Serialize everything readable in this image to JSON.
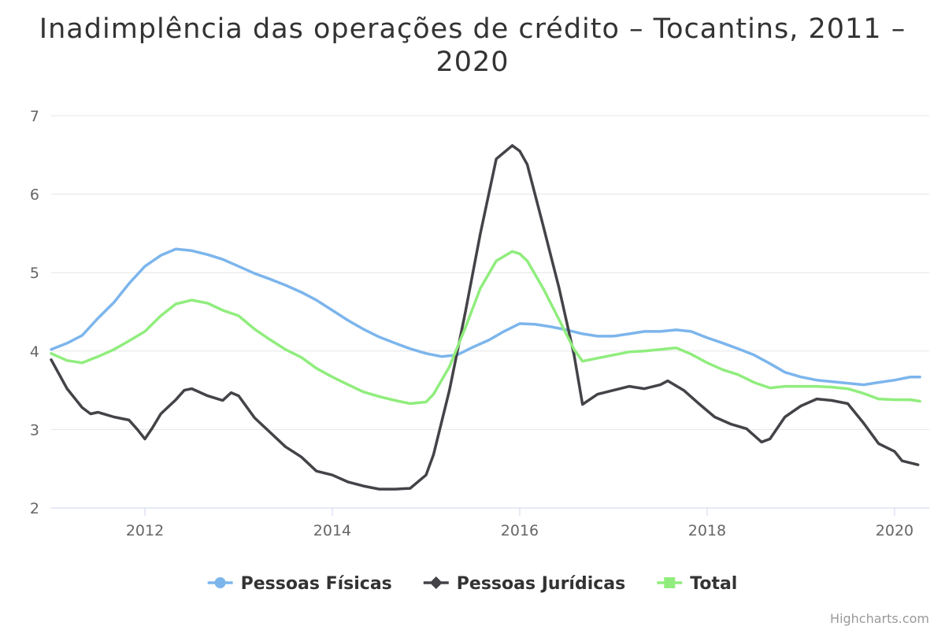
{
  "chart_data": {
    "type": "line",
    "title_line1": "Inadimplência das operações de crédito – Tocantins, 2011 –",
    "title_line2": "2020",
    "xlabel": "",
    "ylabel": "",
    "x_ticks": [
      "2012",
      "2014",
      "2016",
      "2018",
      "2020"
    ],
    "y_ticks": [
      "2",
      "3",
      "4",
      "5",
      "6",
      "7"
    ],
    "xlim": [
      2011.0,
      2020.37
    ],
    "ylim": [
      2,
      7
    ],
    "grid": true,
    "legend_position": "bottom-center",
    "series": [
      {
        "name": "Pessoas Físicas",
        "color": "#7cb5ec",
        "marker": "circle",
        "points": [
          [
            2011.0,
            4.02
          ],
          [
            2011.17,
            4.1
          ],
          [
            2011.33,
            4.2
          ],
          [
            2011.5,
            4.42
          ],
          [
            2011.67,
            4.62
          ],
          [
            2011.83,
            4.86
          ],
          [
            2012.0,
            5.08
          ],
          [
            2012.17,
            5.22
          ],
          [
            2012.33,
            5.3
          ],
          [
            2012.5,
            5.28
          ],
          [
            2012.67,
            5.23
          ],
          [
            2012.83,
            5.17
          ],
          [
            2013.0,
            5.08
          ],
          [
            2013.17,
            4.99
          ],
          [
            2013.33,
            4.92
          ],
          [
            2013.5,
            4.84
          ],
          [
            2013.67,
            4.75
          ],
          [
            2013.83,
            4.65
          ],
          [
            2014.0,
            4.52
          ],
          [
            2014.17,
            4.39
          ],
          [
            2014.33,
            4.28
          ],
          [
            2014.5,
            4.18
          ],
          [
            2014.67,
            4.1
          ],
          [
            2014.83,
            4.03
          ],
          [
            2015.0,
            3.97
          ],
          [
            2015.17,
            3.93
          ],
          [
            2015.33,
            3.95
          ],
          [
            2015.5,
            4.05
          ],
          [
            2015.67,
            4.14
          ],
          [
            2015.83,
            4.25
          ],
          [
            2016.0,
            4.35
          ],
          [
            2016.17,
            4.34
          ],
          [
            2016.33,
            4.31
          ],
          [
            2016.5,
            4.27
          ],
          [
            2016.67,
            4.22
          ],
          [
            2016.83,
            4.19
          ],
          [
            2017.0,
            4.19
          ],
          [
            2017.17,
            4.22
          ],
          [
            2017.33,
            4.25
          ],
          [
            2017.5,
            4.25
          ],
          [
            2017.67,
            4.27
          ],
          [
            2017.83,
            4.25
          ],
          [
            2018.0,
            4.17
          ],
          [
            2018.17,
            4.1
          ],
          [
            2018.33,
            4.03
          ],
          [
            2018.5,
            3.95
          ],
          [
            2018.67,
            3.84
          ],
          [
            2018.83,
            3.73
          ],
          [
            2019.0,
            3.67
          ],
          [
            2019.17,
            3.63
          ],
          [
            2019.33,
            3.61
          ],
          [
            2019.5,
            3.59
          ],
          [
            2019.67,
            3.57
          ],
          [
            2019.83,
            3.6
          ],
          [
            2020.0,
            3.63
          ],
          [
            2020.17,
            3.67
          ],
          [
            2020.27,
            3.67
          ]
        ]
      },
      {
        "name": "Pessoas Jurídicas",
        "color": "#434348",
        "marker": "diamond",
        "points": [
          [
            2011.0,
            3.89
          ],
          [
            2011.17,
            3.52
          ],
          [
            2011.33,
            3.28
          ],
          [
            2011.42,
            3.2
          ],
          [
            2011.5,
            3.22
          ],
          [
            2011.67,
            3.16
          ],
          [
            2011.83,
            3.12
          ],
          [
            2011.92,
            3.0
          ],
          [
            2012.0,
            2.88
          ],
          [
            2012.08,
            3.02
          ],
          [
            2012.17,
            3.2
          ],
          [
            2012.33,
            3.38
          ],
          [
            2012.42,
            3.5
          ],
          [
            2012.5,
            3.52
          ],
          [
            2012.67,
            3.43
          ],
          [
            2012.83,
            3.37
          ],
          [
            2012.92,
            3.47
          ],
          [
            2013.0,
            3.43
          ],
          [
            2013.17,
            3.15
          ],
          [
            2013.33,
            2.97
          ],
          [
            2013.5,
            2.78
          ],
          [
            2013.67,
            2.65
          ],
          [
            2013.83,
            2.47
          ],
          [
            2014.0,
            2.42
          ],
          [
            2014.17,
            2.33
          ],
          [
            2014.33,
            2.28
          ],
          [
            2014.5,
            2.24
          ],
          [
            2014.67,
            2.24
          ],
          [
            2014.83,
            2.25
          ],
          [
            2015.0,
            2.42
          ],
          [
            2015.08,
            2.68
          ],
          [
            2015.25,
            3.5
          ],
          [
            2015.42,
            4.5
          ],
          [
            2015.58,
            5.5
          ],
          [
            2015.75,
            6.45
          ],
          [
            2015.92,
            6.62
          ],
          [
            2016.0,
            6.55
          ],
          [
            2016.08,
            6.38
          ],
          [
            2016.25,
            5.6
          ],
          [
            2016.42,
            4.8
          ],
          [
            2016.58,
            3.95
          ],
          [
            2016.67,
            3.32
          ],
          [
            2016.83,
            3.45
          ],
          [
            2017.0,
            3.5
          ],
          [
            2017.17,
            3.55
          ],
          [
            2017.33,
            3.52
          ],
          [
            2017.5,
            3.57
          ],
          [
            2017.58,
            3.62
          ],
          [
            2017.75,
            3.5
          ],
          [
            2017.92,
            3.32
          ],
          [
            2018.08,
            3.16
          ],
          [
            2018.25,
            3.07
          ],
          [
            2018.42,
            3.01
          ],
          [
            2018.58,
            2.84
          ],
          [
            2018.67,
            2.88
          ],
          [
            2018.83,
            3.16
          ],
          [
            2019.0,
            3.3
          ],
          [
            2019.17,
            3.39
          ],
          [
            2019.33,
            3.37
          ],
          [
            2019.5,
            3.33
          ],
          [
            2019.67,
            3.08
          ],
          [
            2019.83,
            2.82
          ],
          [
            2020.0,
            2.72
          ],
          [
            2020.08,
            2.6
          ],
          [
            2020.25,
            2.55
          ]
        ]
      },
      {
        "name": "Total",
        "color": "#90ed7d",
        "marker": "square",
        "points": [
          [
            2011.0,
            3.97
          ],
          [
            2011.17,
            3.88
          ],
          [
            2011.33,
            3.85
          ],
          [
            2011.5,
            3.93
          ],
          [
            2011.67,
            4.02
          ],
          [
            2011.83,
            4.13
          ],
          [
            2012.0,
            4.25
          ],
          [
            2012.17,
            4.45
          ],
          [
            2012.33,
            4.6
          ],
          [
            2012.5,
            4.65
          ],
          [
            2012.67,
            4.61
          ],
          [
            2012.83,
            4.52
          ],
          [
            2013.0,
            4.45
          ],
          [
            2013.17,
            4.28
          ],
          [
            2013.33,
            4.15
          ],
          [
            2013.5,
            4.02
          ],
          [
            2013.67,
            3.92
          ],
          [
            2013.83,
            3.78
          ],
          [
            2014.0,
            3.67
          ],
          [
            2014.17,
            3.57
          ],
          [
            2014.33,
            3.48
          ],
          [
            2014.5,
            3.42
          ],
          [
            2014.67,
            3.37
          ],
          [
            2014.83,
            3.33
          ],
          [
            2015.0,
            3.35
          ],
          [
            2015.08,
            3.45
          ],
          [
            2015.25,
            3.8
          ],
          [
            2015.42,
            4.3
          ],
          [
            2015.58,
            4.8
          ],
          [
            2015.75,
            5.15
          ],
          [
            2015.92,
            5.27
          ],
          [
            2016.0,
            5.24
          ],
          [
            2016.08,
            5.15
          ],
          [
            2016.25,
            4.8
          ],
          [
            2016.42,
            4.4
          ],
          [
            2016.58,
            4.02
          ],
          [
            2016.67,
            3.87
          ],
          [
            2016.83,
            3.91
          ],
          [
            2017.0,
            3.95
          ],
          [
            2017.17,
            3.99
          ],
          [
            2017.33,
            4.0
          ],
          [
            2017.5,
            4.02
          ],
          [
            2017.67,
            4.04
          ],
          [
            2017.83,
            3.96
          ],
          [
            2018.0,
            3.85
          ],
          [
            2018.17,
            3.76
          ],
          [
            2018.33,
            3.7
          ],
          [
            2018.5,
            3.6
          ],
          [
            2018.67,
            3.53
          ],
          [
            2018.83,
            3.55
          ],
          [
            2019.0,
            3.55
          ],
          [
            2019.17,
            3.55
          ],
          [
            2019.33,
            3.54
          ],
          [
            2019.5,
            3.52
          ],
          [
            2019.67,
            3.46
          ],
          [
            2019.83,
            3.39
          ],
          [
            2020.0,
            3.38
          ],
          [
            2020.17,
            3.38
          ],
          [
            2020.27,
            3.36
          ]
        ]
      }
    ]
  },
  "credits": "Highcharts.com"
}
